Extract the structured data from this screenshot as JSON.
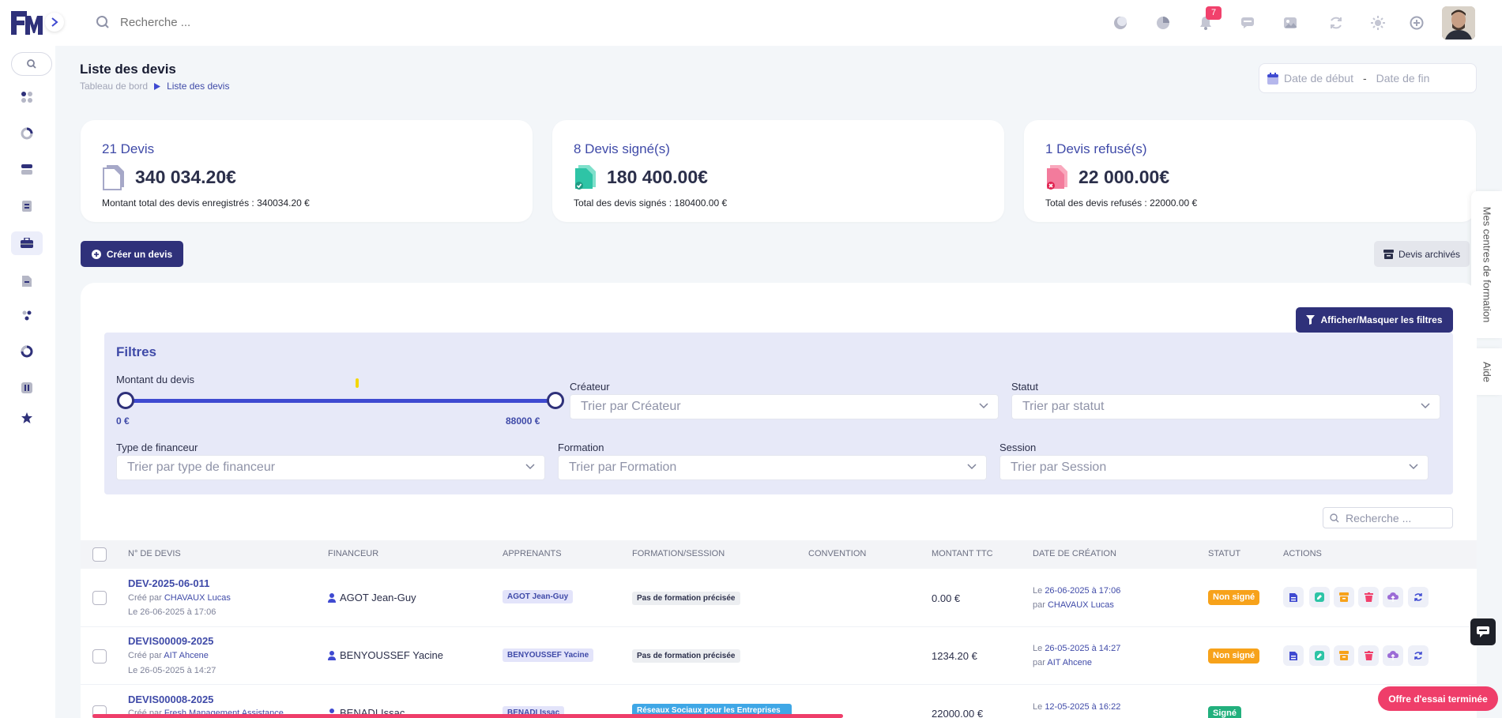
{
  "topbar": {
    "search_placeholder": "Recherche ...",
    "notification_count": "7",
    "icons": [
      "moon-icon",
      "chart-icon",
      "bell-icon",
      "chat-icon",
      "image-icon",
      "refresh-icon",
      "sun-icon",
      "plus-circle-icon"
    ]
  },
  "sidebar": {
    "items": [
      "dashboard-icon",
      "chart-icon",
      "database-icon",
      "document-icon",
      "briefcase-icon",
      "file-icon",
      "users-icon",
      "circle-icon",
      "sliders-icon",
      "star-icon"
    ],
    "active_index": 4
  },
  "page": {
    "title": "Liste des devis",
    "breadcrumb_home": "Tableau de bord",
    "breadcrumb_current": "Liste des devis",
    "date_start_placeholder": "Date de début",
    "date_sep": "-",
    "date_end_placeholder": "Date de fin"
  },
  "cards": [
    {
      "title": "21 Devis",
      "amount": "340 034.20€",
      "desc": "Montant total des devis enregistrés : 340034.20 €",
      "color": "#a6a8c8"
    },
    {
      "title": "8 Devis signé(s)",
      "amount": "180 400.00€",
      "desc": "Total des devis signés : 180400.00 €",
      "color": "#2ec4a6"
    },
    {
      "title": "1 Devis refusé(s)",
      "amount": "22 000.00€",
      "desc": "Total des devis refusés : 22000.00 €",
      "color": "#f1416c"
    }
  ],
  "actions": {
    "create": "Créer un devis",
    "archives": "Devis archivés",
    "toggle_filters": "Afficher/Masquer les filtres"
  },
  "side_tabs": {
    "centres": "Mes centres de formation",
    "aide": "Aide"
  },
  "filters": {
    "title": "Filtres",
    "montant_label": "Montant du devis",
    "montant_min": "0 €",
    "montant_max": "88000 €",
    "createur_label": "Créateur",
    "createur_placeholder": "Trier par Créateur",
    "statut_label": "Statut",
    "statut_placeholder": "Trier par statut",
    "financeur_label": "Type de financeur",
    "financeur_placeholder": "Trier par type de financeur",
    "formation_label": "Formation",
    "formation_placeholder": "Trier par Formation",
    "session_label": "Session",
    "session_placeholder": "Trier par Session"
  },
  "table": {
    "search_placeholder": "Recherche ...",
    "columns": [
      "N° DE DEVIS",
      "FINANCEUR",
      "APPRENANTS",
      "FORMATION/SESSION",
      "CONVENTION",
      "MONTANT TTC",
      "DATE DE CRÉATION",
      "STATUT",
      "ACTIONS"
    ],
    "rows": [
      {
        "num": "DEV-2025-06-011",
        "cree_par_prefix": "Créé par",
        "cree_par": "CHAVAUX Lucas",
        "le": "Le 26-06-2025 à 17:06",
        "financeur": "AGOT Jean-Guy",
        "apprenant": "AGOT Jean-Guy",
        "formation": "Pas de formation précisée",
        "montant": "0.00 €",
        "date_prefix": "Le",
        "date": "26-06-2025 à 17:06",
        "par_prefix": "par",
        "par": "CHAVAUX Lucas",
        "statut": "Non signé"
      },
      {
        "num": "DEVIS00009-2025",
        "cree_par_prefix": "Créé par",
        "cree_par": "AIT Ahcene",
        "le": "Le 26-05-2025 à 14:27",
        "financeur": "BENYOUSSEF Yacine",
        "apprenant": "BENYOUSSEF Yacine",
        "formation": "Pas de formation précisée",
        "montant": "1234.20 €",
        "date_prefix": "Le",
        "date": "26-05-2025 à 14:27",
        "par_prefix": "par",
        "par": "AIT Ahcene",
        "statut": "Non signé"
      },
      {
        "num": "DEVIS00008-2025",
        "cree_par_prefix": "Créé par",
        "cree_par": "Fresh Management Assistance",
        "le": "",
        "financeur": "BENADI Issac",
        "apprenant": "BENADI Issac",
        "formation": "Réseaux Sociaux pour les Entreprises",
        "montant": "22000.00 €",
        "date_prefix": "Le",
        "date": "12-05-2025 à 16:22",
        "par_prefix": "",
        "par": "",
        "statut": "Signé"
      }
    ]
  },
  "trial": "Offre d'essai terminée"
}
